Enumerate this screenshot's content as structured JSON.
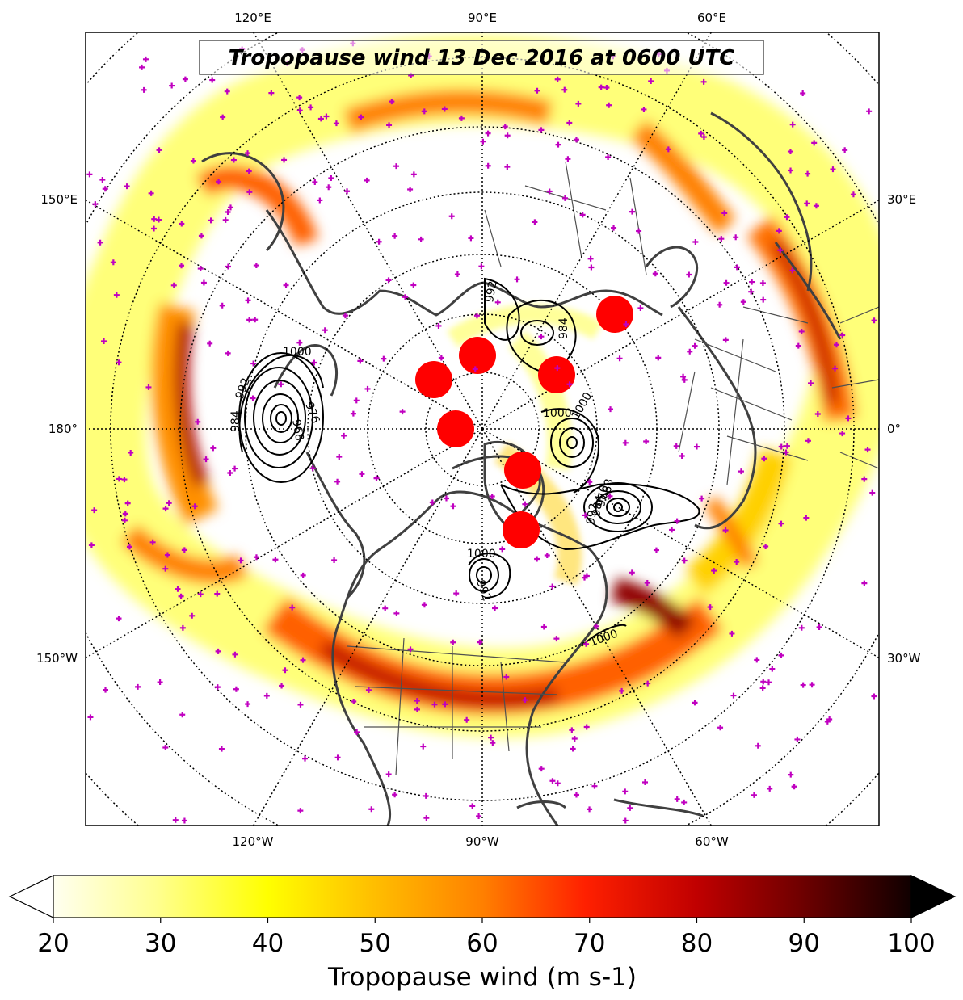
{
  "map": {
    "title": "Tropopause wind 13 Dec 2016 at 0600 UTC",
    "projection": "north-polar-stereographic",
    "field": "tropopause wind speed",
    "shading_palette": "hot_r",
    "longitude_labels_top": [
      "120°E",
      "90°E",
      "60°E"
    ],
    "longitude_labels_bottom": [
      "120°W",
      "90°W",
      "60°W"
    ],
    "longitude_labels_left": [
      "150°E",
      "180°",
      "150°W"
    ],
    "longitude_labels_right": [
      "30°E",
      "0°",
      "30°W"
    ],
    "contour_labels": [
      "1000",
      "992",
      "984",
      "976",
      "968",
      "1000",
      "992",
      "984",
      "1000",
      "992",
      "984",
      "976",
      "968",
      "1000",
      "992",
      "1000"
    ],
    "marker_colors": {
      "station_plus": "#c000c0",
      "red_dot": "#ff0000"
    }
  },
  "colorbar": {
    "label": "Tropopause wind (m s-1)",
    "ticks": [
      20,
      30,
      40,
      50,
      60,
      70,
      80,
      90,
      100
    ],
    "min": 20,
    "max": 100,
    "extend": "both"
  }
}
